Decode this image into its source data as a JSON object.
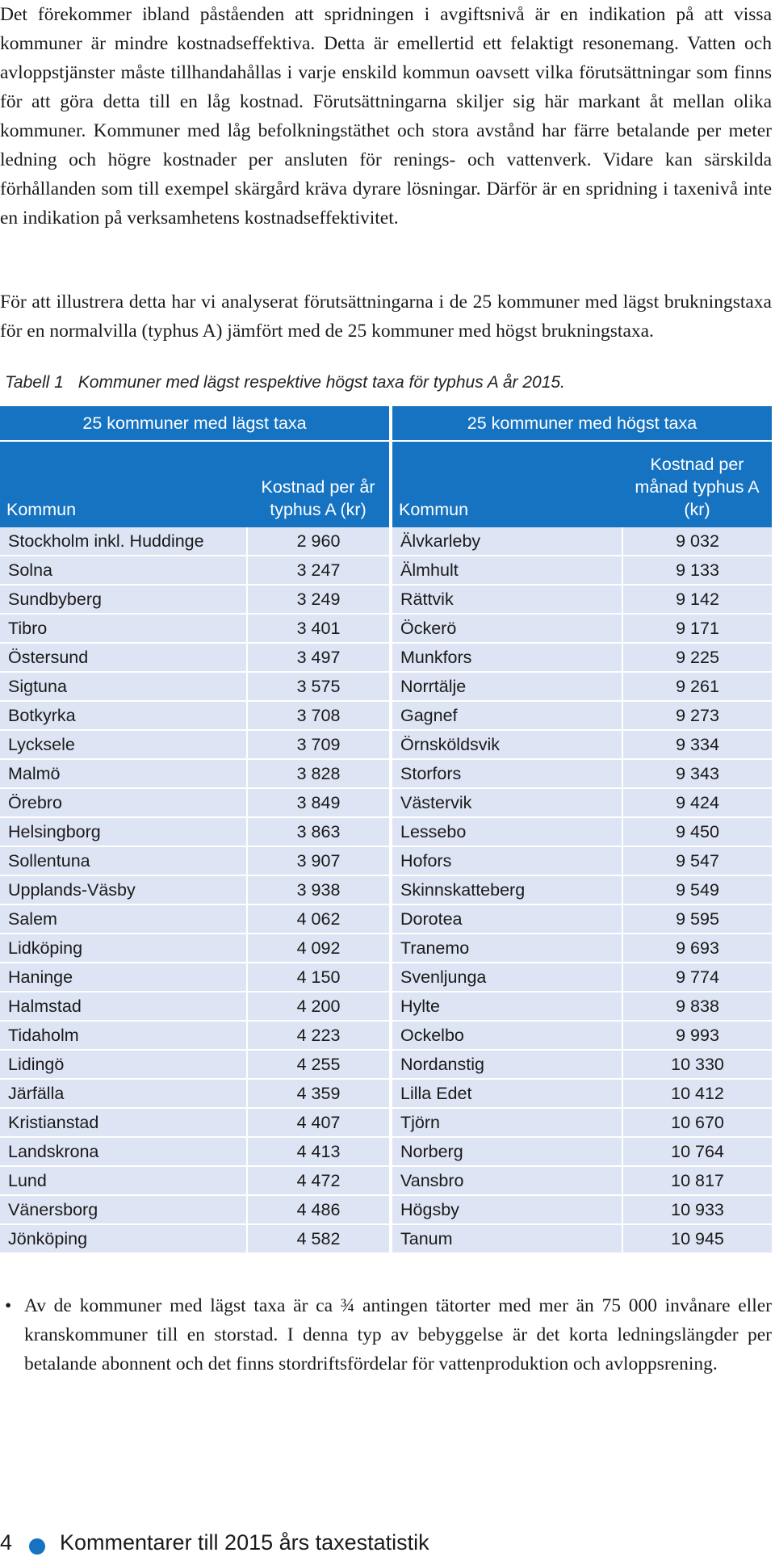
{
  "paragraphs": [
    "Det förekommer ibland påståenden att spridningen i avgiftsnivå är en indikation på att vissa kommuner är mindre kostnadseffektiva. Detta är emellertid ett felaktigt resonemang. Vatten och avloppstjänster måste tillhandahållas i varje enskild kommun oavsett vilka förutsättningar som finns för att göra detta till en låg kostnad. Förutsättningarna skiljer sig här markant åt mellan olika kommuner. Kommuner med låg befolkningstäthet och stora avstånd har färre betalande per meter ledning och högre kostnader per ansluten för renings- och vattenverk. Vidare kan särskilda förhållanden som till exempel skärgård kräva dyrare lösningar. Därför är en spridning i taxenivå inte en indikation på verksamhetens kostnadseffektivitet.",
    "För att illustrera detta har vi analyserat förutsättningarna i de 25 kommuner med lägst brukningstaxa för en normalvilla (typhus A) jämfört med de 25 kommuner med högst brukningstaxa."
  ],
  "table": {
    "caption_number": "Tabell 1",
    "caption_text": "Kommuner med lägst respektive högst taxa för typhus A år 2015.",
    "group_low": "25 kommuner med lägst taxa",
    "group_high": "25 kommuner med högst taxa",
    "col_kommun": "Kommun",
    "col_cost_year": "Kostnad per år typhus A (kr)",
    "col_cost_month": "Kostnad per månad typhus A (kr)",
    "rows": [
      {
        "low_name": "Stockholm inkl. Huddinge",
        "low_cost": "2 960",
        "high_name": "Älvkarleby",
        "high_cost": "9 032"
      },
      {
        "low_name": "Solna",
        "low_cost": "3 247",
        "high_name": "Älmhult",
        "high_cost": "9 133"
      },
      {
        "low_name": "Sundbyberg",
        "low_cost": "3 249",
        "high_name": "Rättvik",
        "high_cost": "9 142"
      },
      {
        "low_name": "Tibro",
        "low_cost": "3 401",
        "high_name": "Öckerö",
        "high_cost": "9 171"
      },
      {
        "low_name": "Östersund",
        "low_cost": "3 497",
        "high_name": "Munkfors",
        "high_cost": "9 225"
      },
      {
        "low_name": "Sigtuna",
        "low_cost": "3 575",
        "high_name": "Norrtälje",
        "high_cost": "9 261"
      },
      {
        "low_name": "Botkyrka",
        "low_cost": "3 708",
        "high_name": "Gagnef",
        "high_cost": "9 273"
      },
      {
        "low_name": "Lycksele",
        "low_cost": "3 709",
        "high_name": "Örnsköldsvik",
        "high_cost": "9 334"
      },
      {
        "low_name": "Malmö",
        "low_cost": "3 828",
        "high_name": "Storfors",
        "high_cost": "9 343"
      },
      {
        "low_name": "Örebro",
        "low_cost": "3 849",
        "high_name": "Västervik",
        "high_cost": "9 424"
      },
      {
        "low_name": "Helsingborg",
        "low_cost": "3 863",
        "high_name": "Lessebo",
        "high_cost": "9 450"
      },
      {
        "low_name": "Sollentuna",
        "low_cost": "3 907",
        "high_name": "Hofors",
        "high_cost": "9 547"
      },
      {
        "low_name": "Upplands-Väsby",
        "low_cost": "3 938",
        "high_name": "Skinnskatteberg",
        "high_cost": "9 549"
      },
      {
        "low_name": "Salem",
        "low_cost": "4 062",
        "high_name": "Dorotea",
        "high_cost": "9 595"
      },
      {
        "low_name": "Lidköping",
        "low_cost": "4 092",
        "high_name": "Tranemo",
        "high_cost": "9 693"
      },
      {
        "low_name": "Haninge",
        "low_cost": "4 150",
        "high_name": "Svenljunga",
        "high_cost": "9 774"
      },
      {
        "low_name": "Halmstad",
        "low_cost": "4 200",
        "high_name": "Hylte",
        "high_cost": "9 838"
      },
      {
        "low_name": "Tidaholm",
        "low_cost": "4 223",
        "high_name": "Ockelbo",
        "high_cost": "9 993"
      },
      {
        "low_name": "Lidingö",
        "low_cost": "4 255",
        "high_name": "Nordanstig",
        "high_cost": "10 330"
      },
      {
        "low_name": "Järfälla",
        "low_cost": "4 359",
        "high_name": "Lilla Edet",
        "high_cost": "10 412"
      },
      {
        "low_name": "Kristianstad",
        "low_cost": "4 407",
        "high_name": "Tjörn",
        "high_cost": "10 670"
      },
      {
        "low_name": "Landskrona",
        "low_cost": "4 413",
        "high_name": "Norberg",
        "high_cost": "10 764"
      },
      {
        "low_name": "Lund",
        "low_cost": "4 472",
        "high_name": "Vansbro",
        "high_cost": "10 817"
      },
      {
        "low_name": "Vänersborg",
        "low_cost": "4 486",
        "high_name": "Högsby",
        "high_cost": "10 933"
      },
      {
        "low_name": "Jönköping",
        "low_cost": "4 582",
        "high_name": "Tanum",
        "high_cost": "10 945"
      }
    ]
  },
  "bullet": {
    "marker": "•",
    "text": "Av de kommuner med lägst taxa är ca ¾ antingen tätorter med mer än 75 000 invånare eller kranskommuner till en storstad. I denna typ av bebyggelse är det korta ledningslängder per betalande abonnent och det finns stordriftsfördelar för vattenproduktion och avloppsrening."
  },
  "footer": {
    "page_number": "4",
    "title": "Kommentarer till 2015 års taxestatistik"
  },
  "colors": {
    "header_blue": "#1573c2",
    "row_bg": "#dde4f3"
  }
}
